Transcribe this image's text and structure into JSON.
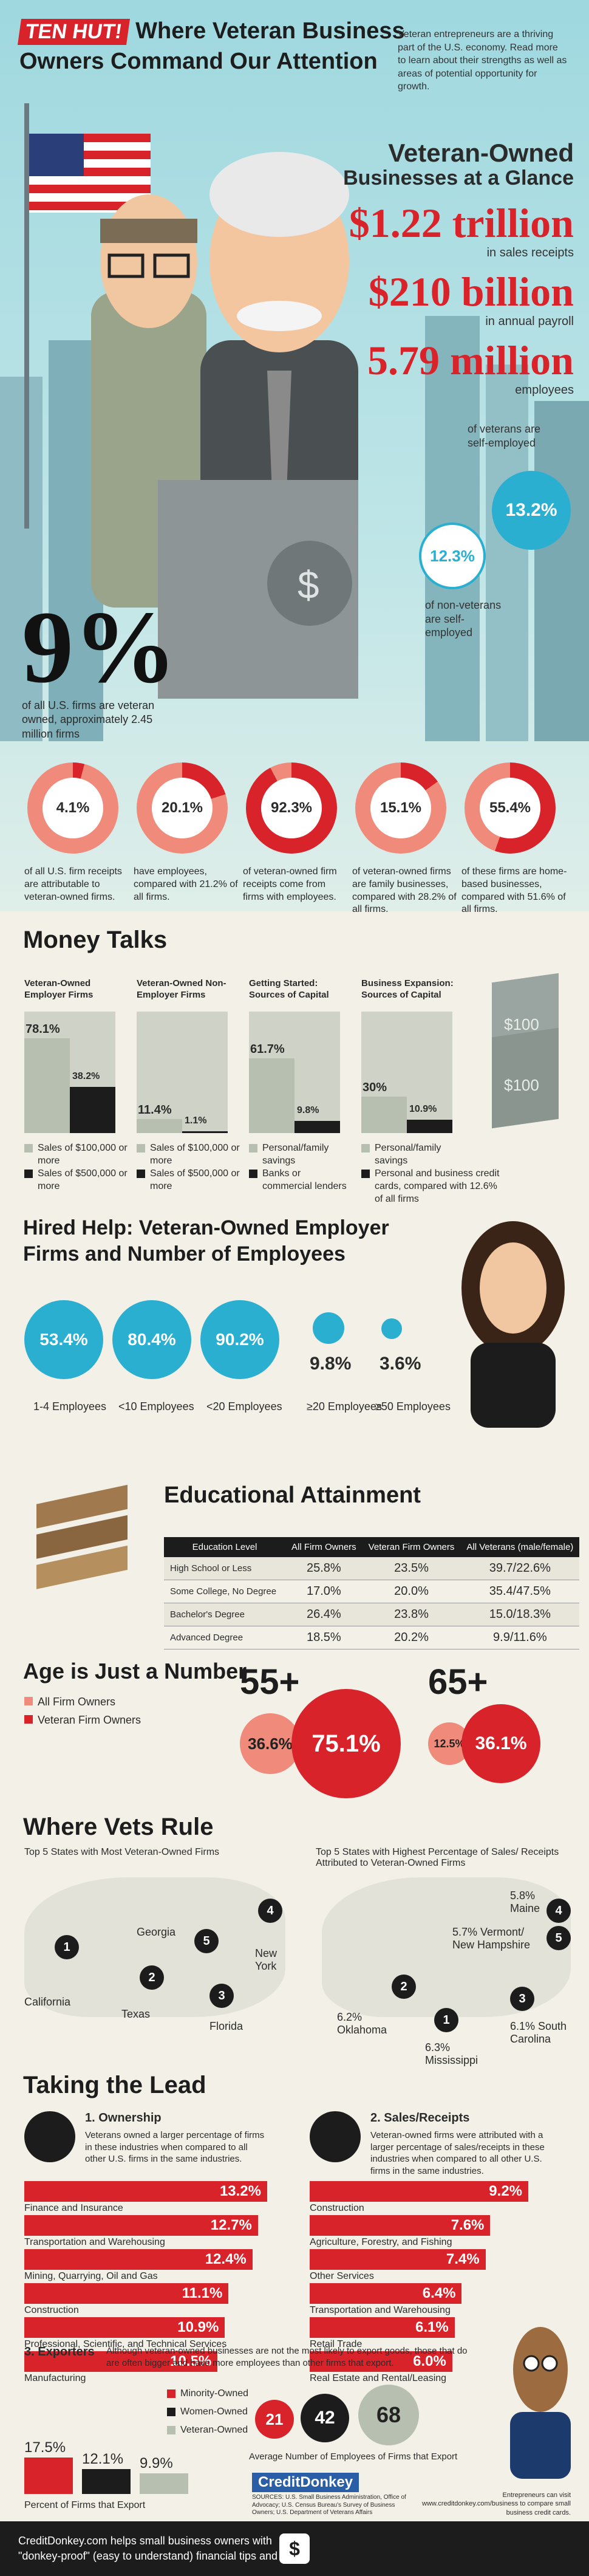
{
  "title": {
    "tag": "TEN HUT!",
    "line1": "Where Veteran Business",
    "line2": "Owners Command Our Attention"
  },
  "intro": "Veteran entrepreneurs are a thriving part of the U.S. economy. Read more to learn about their strengths as well as areas of potential opportunity for growth.",
  "glance": {
    "heading1": "Veteran-Owned",
    "heading2": "Businesses at a Glance",
    "stats": [
      {
        "value": "$1.22 trillion",
        "label": "in sales receipts"
      },
      {
        "value": "$210 billion",
        "label": "in annual payroll"
      },
      {
        "value": "5.79 million",
        "label": "employees"
      }
    ],
    "self_emp": {
      "caption1": "of veterans are self-employed",
      "v1": "13.2%",
      "v2": "12.3%",
      "caption2": "of non-veterans are self-employed"
    }
  },
  "nine": {
    "value": "9%",
    "caption": "of all U.S. firms are veteran owned, approximately 2.45 million firms"
  },
  "donuts": [
    {
      "value": "4.1%",
      "pct": 4.1,
      "caption": "of all U.S. firm receipts are attributable to veteran-owned firms."
    },
    {
      "value": "20.1%",
      "pct": 20.1,
      "caption": "have employees, compared with 21.2% of all firms."
    },
    {
      "value": "92.3%",
      "pct": 92.3,
      "caption": "of veteran-owned firm receipts come from firms with employees."
    },
    {
      "value": "15.1%",
      "pct": 15.1,
      "caption": "of veteran-owned firms are family businesses, compared with 28.2% of all firms."
    },
    {
      "value": "55.4%",
      "pct": 55.4,
      "caption": "of these firms are home-based businesses, compared with 51.6% of all firms."
    }
  ],
  "money": {
    "heading": "Money Talks",
    "groups": [
      {
        "title": "Veteran-Owned Employer Firms",
        "a": "78.1%",
        "av": 78.1,
        "b": "38.2%",
        "bv": 38.2,
        "leg1": "Sales of $100,000 or more",
        "leg2": "Sales of $500,000 or more"
      },
      {
        "title": "Veteran-Owned Non-Employer Firms",
        "a": "11.4%",
        "av": 11.4,
        "b": "1.1%",
        "bv": 1.1,
        "leg1": "Sales of $100,000 or more",
        "leg2": "Sales of $500,000 or more"
      },
      {
        "title": "Getting Started: Sources of Capital",
        "a": "61.7%",
        "av": 61.7,
        "b": "9.8%",
        "bv": 9.8,
        "leg1": "Personal/family savings",
        "leg2": "Banks or commercial lenders"
      },
      {
        "title": "Business Expansion: Sources of Capital",
        "a": "30%",
        "av": 30,
        "b": "10.9%",
        "bv": 10.9,
        "leg1": "Personal/family savings",
        "leg2": "Personal and business credit cards, compared with 12.6% of all firms"
      }
    ],
    "money_label": "$100"
  },
  "hired": {
    "heading1": "Hired Help: Veteran-Owned Employer",
    "heading2": "Firms and Number of Employees",
    "items": [
      {
        "value": "53.4%",
        "label": "1-4 Employees"
      },
      {
        "value": "80.4%",
        "label": "<10 Employees"
      },
      {
        "value": "90.2%",
        "label": "<20 Employees"
      },
      {
        "value": "9.8%",
        "label": "≥20 Employees"
      },
      {
        "value": "3.6%",
        "label": "≥50 Employees"
      }
    ]
  },
  "edu": {
    "heading": "Educational Attainment",
    "headers": [
      "Education Level",
      "All Firm Owners",
      "Veteran Firm Owners",
      "All Veterans (male/female)"
    ],
    "rows": [
      [
        "High School or Less",
        "25.8%",
        "23.5%",
        "39.7/22.6%"
      ],
      [
        "Some College, No Degree",
        "17.0%",
        "20.0%",
        "35.4/47.5%"
      ],
      [
        "Bachelor's Degree",
        "26.4%",
        "23.8%",
        "15.0/18.3%"
      ],
      [
        "Advanced Degree",
        "18.5%",
        "20.2%",
        "9.9/11.6%"
      ]
    ]
  },
  "age": {
    "heading": "Age is Just a Number",
    "legend1": "All Firm Owners",
    "legend2": "Veteran Firm Owners",
    "g1": {
      "label": "55+",
      "a": "36.6%",
      "b": "75.1%"
    },
    "g2": {
      "label": "65+",
      "a": "12.5%",
      "b": "36.1%"
    }
  },
  "vets": {
    "heading": "Where Vets Rule",
    "sub1": "Top 5 States with Most Veteran-Owned Firms",
    "sub2": "Top 5 States with Highest Percentage of Sales/ Receipts Attributed to Veteran-Owned Firms",
    "left": {
      "georgia": "Georgia",
      "newyork": "New York",
      "california": "California",
      "texas": "Texas",
      "florida": "Florida"
    },
    "right": {
      "maine": "5.8% Maine",
      "vermont": "5.7% Vermont/ New Hampshire",
      "oklahoma": "6.2% Oklahoma",
      "mississippi": "6.3% Mississippi",
      "scarolina": "6.1% South Carolina"
    },
    "ranks": [
      "1",
      "2",
      "3",
      "4",
      "5"
    ]
  },
  "lead": {
    "heading": "Taking the Lead",
    "own": {
      "title": "1. Ownership",
      "text": "Veterans owned a larger percentage of firms in these industries when compared to all other U.S. firms in the same industries.",
      "bars": [
        {
          "v": "13.2%",
          "n": 13.2,
          "l": "Finance and Insurance"
        },
        {
          "v": "12.7%",
          "n": 12.7,
          "l": "Transportation and Warehousing"
        },
        {
          "v": "12.4%",
          "n": 12.4,
          "l": "Mining, Quarrying, Oil and Gas"
        },
        {
          "v": "11.1%",
          "n": 11.1,
          "l": "Construction"
        },
        {
          "v": "10.9%",
          "n": 10.9,
          "l": "Professional, Scientific, and Technical Services"
        },
        {
          "v": "10.5%",
          "n": 10.5,
          "l": "Manufacturing"
        }
      ]
    },
    "sales": {
      "title": "2. Sales/Receipts",
      "text": "Veteran-owned firms were attributed with a larger percentage of sales/receipts in these industries when compared to all other U.S. firms in the same industries.",
      "bars": [
        {
          "v": "9.2%",
          "n": 9.2,
          "l": "Construction"
        },
        {
          "v": "7.6%",
          "n": 7.6,
          "l": "Agriculture, Forestry, and Fishing"
        },
        {
          "v": "7.4%",
          "n": 7.4,
          "l": "Other Services"
        },
        {
          "v": "6.4%",
          "n": 6.4,
          "l": "Transportation and Warehousing"
        },
        {
          "v": "6.1%",
          "n": 6.1,
          "l": "Retail Trade"
        },
        {
          "v": "6.0%",
          "n": 6.0,
          "l": "Real Estate and Rental/Leasing"
        }
      ]
    }
  },
  "exporters": {
    "title": "3. Exporters",
    "text": "Although veteran-owned businesses are not the most likely to export goods, those that do are often bigger and have more employees than other firms that export.",
    "legend": [
      "Minority-Owned",
      "Women-Owned",
      "Veteran-Owned"
    ],
    "pct": [
      "17.5%",
      "12.1%",
      "9.9%"
    ],
    "pct_caption": "Percent of Firms that Export",
    "avg": [
      "21",
      "42",
      "68"
    ],
    "avg_caption": "Average Number of Employees of Firms that Export"
  },
  "sources": {
    "brand": "CreditDonkey",
    "text": "SOURCES: U.S. Small Business Administration, Office of Advocacy; U.S. Census Bureau's Survey of Business Owners; U.S. Department of Veterans Affairs",
    "visit": "Entrepreneurs can visit www.creditdonkey.com/business to compare small business credit cards."
  },
  "footer": {
    "text1": "CreditDonkey.com helps small business owners with",
    "text2": "\"donkey-proof\" (easy to understand) financial tips and deals."
  },
  "colors": {
    "red": "#d8232a",
    "pink": "#f08a7a",
    "blue": "#2bafd1",
    "black": "#1c1c1c",
    "grey": "#cfd2c6"
  }
}
